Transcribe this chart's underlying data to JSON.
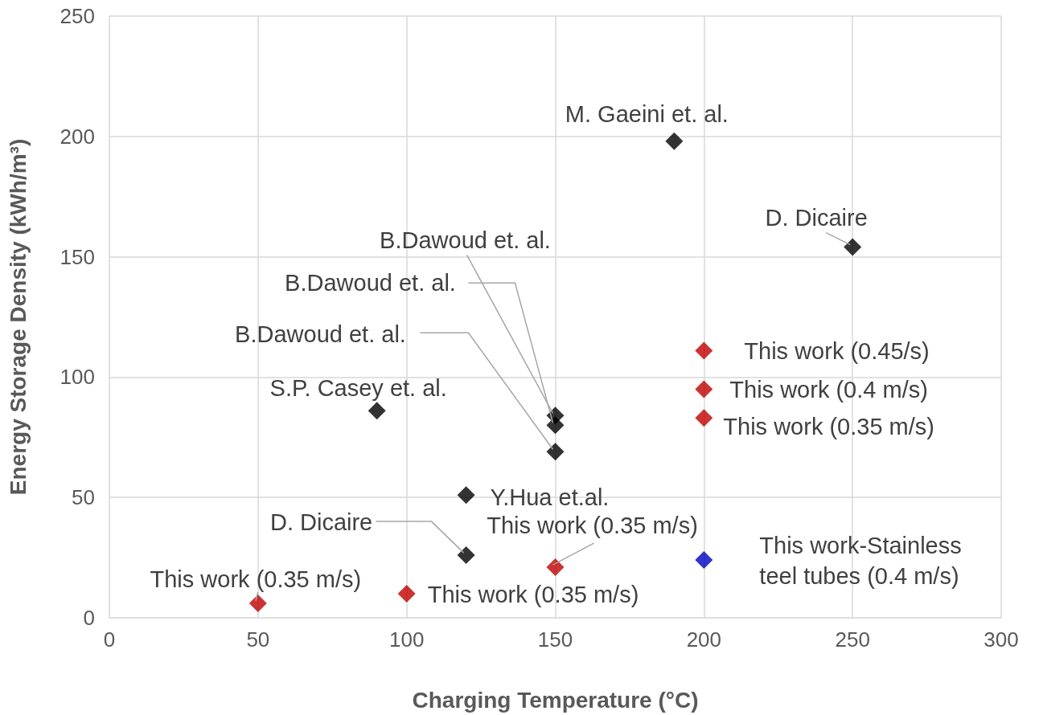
{
  "chart_data": {
    "type": "scatter",
    "xlabel": "Charging Temperature (°C)",
    "ylabel": "Energy Storage Density (kWh/m³)",
    "xlim": [
      0,
      300
    ],
    "xticks": [
      0,
      50,
      100,
      150,
      200,
      250,
      300
    ],
    "ylim": [
      0,
      250
    ],
    "yticks": [
      0,
      50,
      100,
      150,
      200,
      250
    ],
    "grid": true,
    "marker": "diamond",
    "series": [
      {
        "color": "#000000",
        "x": [
          190,
          250,
          150,
          150,
          150,
          90,
          120,
          120
        ],
        "values": [
          198,
          154,
          84,
          80,
          69,
          86,
          51,
          26
        ]
      },
      {
        "color": "#c00000",
        "x": [
          200,
          200,
          200,
          150,
          100,
          50
        ],
        "values": [
          111,
          95,
          83,
          21,
          10,
          6
        ]
      },
      {
        "color": "#0000c0",
        "x": [
          200
        ],
        "values": [
          24
        ]
      }
    ],
    "annotations": [
      {
        "text": "M. Gaeini et. al.",
        "x": 190,
        "y": 198
      },
      {
        "text": "D. Dicaire",
        "x": 250,
        "y": 154
      },
      {
        "text": "B.Dawoud et. al.",
        "x": 150,
        "y": 84
      },
      {
        "text": "B.Dawoud et. al.",
        "x": 150,
        "y": 80
      },
      {
        "text": "B.Dawoud et. al.",
        "x": 150,
        "y": 69
      },
      {
        "text": "S.P. Casey et. al.",
        "x": 90,
        "y": 86
      },
      {
        "text": "Y.Hua et.al.",
        "x": 120,
        "y": 51
      },
      {
        "text": "D. Dicaire",
        "x": 120,
        "y": 26
      },
      {
        "text": "This work (0.35 m/s)",
        "x": 150,
        "y": 21
      },
      {
        "text": "This work (0.35 m/s)",
        "x": 100,
        "y": 10
      },
      {
        "text": "This work (0.35 m/s)",
        "x": 50,
        "y": 6
      },
      {
        "text": "This work (0.45/s)",
        "x": 200,
        "y": 111
      },
      {
        "text": "This work (0.4 m/s)",
        "x": 200,
        "y": 95
      },
      {
        "text": "This work (0.35 m/s)",
        "x": 200,
        "y": 83
      },
      {
        "text": "This work-Stainless\nteel tubes (0.4 m/s)",
        "x": 200,
        "y": 24
      }
    ]
  }
}
